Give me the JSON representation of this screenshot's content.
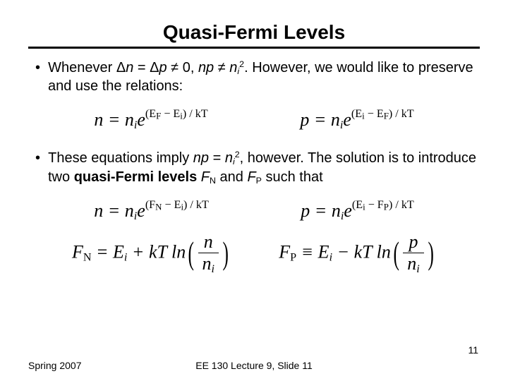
{
  "title": "Quasi-Fermi Levels",
  "bullet1_a": "Whenever ",
  "bullet1_deltan": "Δ",
  "bullet1_n": "n",
  "bullet1_eq": " = ",
  "bullet1_deltap": "Δ",
  "bullet1_p": "p",
  "bullet1_neq1": " ≠ 0, ",
  "bullet1_np": "np",
  "bullet1_neq2": " ≠ ",
  "bullet1_ni": "n",
  "bullet1_sub_i": "i",
  "bullet1_sup2": "2",
  "bullet1_b": ".  However, we would like to preserve and use the relations:",
  "eq_n_lhs": "n = n",
  "eq_n_sub": "i",
  "eq_n_e": "e",
  "eq_n_exp": "(E",
  "eq_n_exp_F": "F",
  "eq_n_exp_mid": " − E",
  "eq_n_exp_i": "i",
  "eq_n_exp_end": ") / kT",
  "eq_p_lhs": "p = n",
  "eq_p_sub": "i",
  "eq_p_e": "e",
  "eq_p_exp": "(E",
  "eq_p_exp_i": "i",
  "eq_p_exp_mid": " − E",
  "eq_p_exp_F": "F",
  "eq_p_exp_end": ") / kT",
  "bullet2_a": "These equations imply ",
  "bullet2_np": "np",
  "bullet2_eq": " = ",
  "bullet2_ni": "n",
  "bullet2_sub_i": "i",
  "bullet2_sup2": "2",
  "bullet2_b": ", however.  The solution is to introduce two ",
  "bullet2_bold": "quasi-Fermi levels",
  "bullet2_c": " ",
  "bullet2_FN": "F",
  "bullet2_FN_sub": "N",
  "bullet2_and": " and ",
  "bullet2_FP": "F",
  "bullet2_FP_sub": "P",
  "bullet2_d": " such that",
  "eq2_n_lhs": "n = n",
  "eq2_n_sub": "i",
  "eq2_n_e": "e",
  "eq2_n_exp_a": "(F",
  "eq2_n_exp_N": "N",
  "eq2_n_exp_mid": " − E",
  "eq2_n_exp_i": "i",
  "eq2_n_exp_end": ") / kT",
  "eq2_p_lhs": "p = n",
  "eq2_p_sub": "i",
  "eq2_p_e": "e",
  "eq2_p_exp_a": "(E",
  "eq2_p_exp_i": "i",
  "eq2_p_exp_mid": " − F",
  "eq2_p_exp_P": "P",
  "eq2_p_exp_end": ") / kT",
  "eq3_FN_lhs": "F",
  "eq3_FN_sub": "N",
  "eq3_FN_eq": " = E",
  "eq3_FN_Ei_sub": "i",
  "eq3_FN_plus": " + kT ln",
  "eq3_FN_num": "n",
  "eq3_FN_den_n": "n",
  "eq3_FN_den_i": "i",
  "eq3_FP_lhs": "F",
  "eq3_FP_sub": "P",
  "eq3_FP_eq": " ≡ E",
  "eq3_FP_Ei_sub": "i",
  "eq3_FP_minus": " − kT ln",
  "eq3_FP_num": "p",
  "eq3_FP_den_n": "n",
  "eq3_FP_den_i": "i",
  "footer_left": "Spring 2007",
  "footer_center": "EE 130 Lecture 9, Slide 11",
  "page_num": "11"
}
